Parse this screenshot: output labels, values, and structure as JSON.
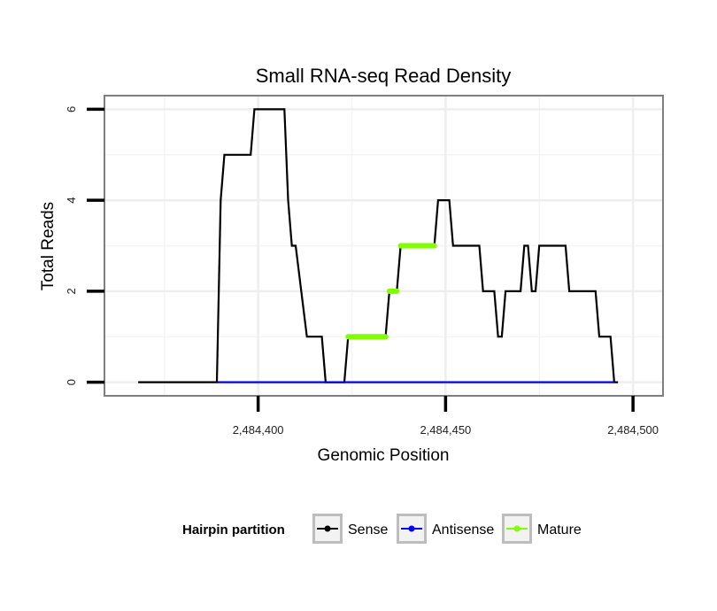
{
  "chart_data": {
    "type": "line",
    "title": "Small RNA-seq Read Density",
    "xlabel": "Genomic Position",
    "ylabel": "Total Reads",
    "xlim": [
      2484359,
      2484508
    ],
    "ylim": [
      -0.3,
      6.3
    ],
    "x_ticks": [
      2484400,
      2484450,
      2484500
    ],
    "x_tick_labels": [
      "2,484,400",
      "2,484,450",
      "2,484,500"
    ],
    "y_ticks": [
      0,
      2,
      4,
      6
    ],
    "y_tick_labels": [
      "0",
      "2",
      "4",
      "6"
    ],
    "grid": true,
    "legend": {
      "title": "Hairpin partition",
      "position": "bottom",
      "entries": [
        {
          "name": "Sense",
          "color": "#000000"
        },
        {
          "name": "Antisense",
          "color": "#0000ff"
        },
        {
          "name": "Mature",
          "color": "#7fff00"
        }
      ]
    },
    "series": [
      {
        "name": "Sense",
        "color": "#000000",
        "points": [
          [
            2484368,
            0
          ],
          [
            2484389,
            0
          ],
          [
            2484390,
            4
          ],
          [
            2484391,
            5
          ],
          [
            2484398,
            5
          ],
          [
            2484399,
            6
          ],
          [
            2484407,
            6
          ],
          [
            2484408,
            4
          ],
          [
            2484409,
            3
          ],
          [
            2484410,
            3
          ],
          [
            2484413,
            1
          ],
          [
            2484417,
            1
          ],
          [
            2484418,
            0
          ],
          [
            2484423,
            0
          ],
          [
            2484424,
            1
          ],
          [
            2484434,
            1
          ],
          [
            2484435,
            2
          ],
          [
            2484437,
            2
          ],
          [
            2484438,
            3
          ],
          [
            2484447,
            3
          ],
          [
            2484448,
            4
          ],
          [
            2484451,
            4
          ],
          [
            2484452,
            3
          ],
          [
            2484459,
            3
          ],
          [
            2484460,
            2
          ],
          [
            2484463,
            2
          ],
          [
            2484464,
            1
          ],
          [
            2484465,
            1
          ],
          [
            2484466,
            2
          ],
          [
            2484470,
            2
          ],
          [
            2484471,
            3
          ],
          [
            2484472,
            3
          ],
          [
            2484473,
            2
          ],
          [
            2484474,
            2
          ],
          [
            2484475,
            3
          ],
          [
            2484482,
            3
          ],
          [
            2484483,
            2
          ],
          [
            2484490,
            2
          ],
          [
            2484491,
            1
          ],
          [
            2484494,
            1
          ],
          [
            2484495,
            0
          ],
          [
            2484496,
            0
          ]
        ]
      },
      {
        "name": "Antisense",
        "color": "#0000ff",
        "points": [
          [
            2484389,
            0
          ],
          [
            2484495,
            0
          ]
        ]
      },
      {
        "name": "Mature",
        "color": "#7fff00",
        "segments": [
          {
            "x": [
              2484424,
              2484434
            ],
            "y": 1
          },
          {
            "x": [
              2484435,
              2484437
            ],
            "y": 2
          },
          {
            "x": [
              2484438,
              2484447
            ],
            "y": 3
          }
        ]
      }
    ]
  }
}
